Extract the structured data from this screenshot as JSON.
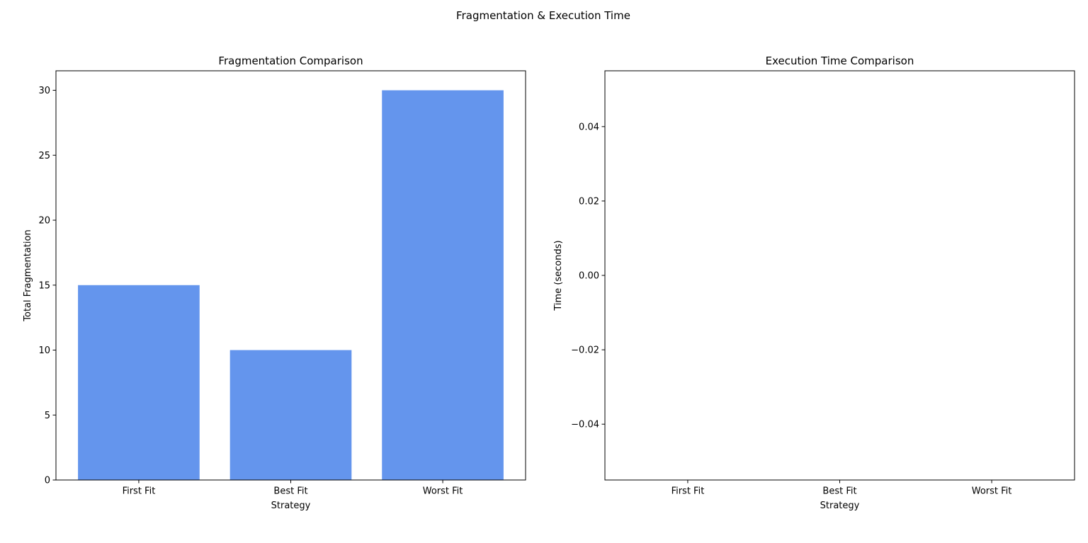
{
  "figure": {
    "title": "Fragmentation & Execution Time"
  },
  "chart_data": [
    {
      "type": "bar",
      "title": "Fragmentation Comparison",
      "xlabel": "Strategy",
      "ylabel": "Total Fragmentation",
      "categories": [
        "First Fit",
        "Best Fit",
        "Worst Fit"
      ],
      "values": [
        15,
        10,
        30
      ],
      "ylim": [
        0,
        31.5
      ],
      "yticks": [
        0,
        5,
        10,
        15,
        20,
        25,
        30
      ],
      "ytick_labels": [
        "0",
        "5",
        "10",
        "15",
        "20",
        "25",
        "30"
      ],
      "bar_color": "#6495ED",
      "grid": false,
      "legend": "none"
    },
    {
      "type": "bar",
      "title": "Execution Time Comparison",
      "xlabel": "Strategy",
      "ylabel": "Time (seconds)",
      "categories": [
        "First Fit",
        "Best Fit",
        "Worst Fit"
      ],
      "values": [
        0,
        0,
        0
      ],
      "ylim": [
        -0.055,
        0.055
      ],
      "yticks": [
        -0.04,
        -0.02,
        0,
        0.02,
        0.04
      ],
      "ytick_labels": [
        "−0.04",
        "−0.02",
        "0.00",
        "0.02",
        "0.04"
      ],
      "bar_color": "#6495ED",
      "grid": false,
      "legend": "none"
    }
  ]
}
